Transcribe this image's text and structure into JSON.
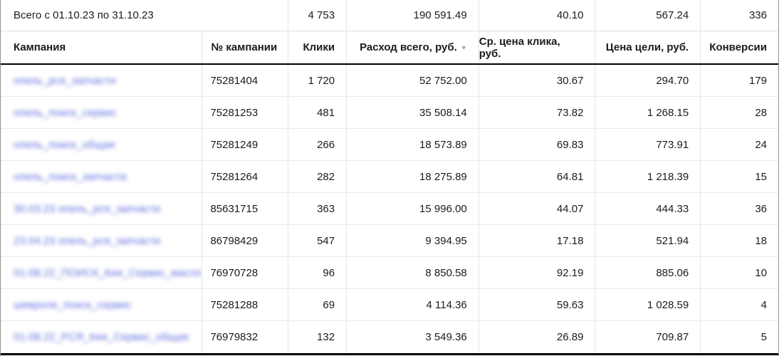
{
  "colors": {
    "link": "#4353d9",
    "header_underline": "#000000",
    "row_divider": "#e9e9e9",
    "sort_arrow": "#a0a0a0"
  },
  "table": {
    "totals": {
      "label": "Всего с 01.10.23 по 31.10.23",
      "clicks": "4 753",
      "cost": "190 591.49",
      "avg_cpc": "40.10",
      "goal_cost": "567.24",
      "conversions": "336"
    },
    "headers": {
      "campaign": "Кампания",
      "campaign_id": "№ кампании",
      "clicks": "Клики",
      "cost": "Расход всего, руб.",
      "avg_cpc": "Ср. цена клика, руб.",
      "goal_cost": "Цена цели, руб.",
      "conversions": "Конверсии"
    },
    "sort_icon": "▼",
    "sorted_by": "cost",
    "rows": [
      {
        "name": "опель_рся_запчасти",
        "id": "75281404",
        "clicks": "1 720",
        "cost": "52 752.00",
        "avg_cpc": "30.67",
        "goal_cost": "294.70",
        "conversions": "179"
      },
      {
        "name": "опель_поиск_сервис",
        "id": "75281253",
        "clicks": "481",
        "cost": "35 508.14",
        "avg_cpc": "73.82",
        "goal_cost": "1 268.15",
        "conversions": "28"
      },
      {
        "name": "опель_поиск_общая",
        "id": "75281249",
        "clicks": "266",
        "cost": "18 573.89",
        "avg_cpc": "69.83",
        "goal_cost": "773.91",
        "conversions": "24"
      },
      {
        "name": "опель_поиск_запчасти",
        "id": "75281264",
        "clicks": "282",
        "cost": "18 275.89",
        "avg_cpc": "64.81",
        "goal_cost": "1 218.39",
        "conversions": "15"
      },
      {
        "name": "30.03.23 опель_рся_запчасти",
        "id": "85631715",
        "clicks": "363",
        "cost": "15 996.00",
        "avg_cpc": "44.07",
        "goal_cost": "444.33",
        "conversions": "36"
      },
      {
        "name": "23.04.23 опель_рся_запчасти",
        "id": "86798429",
        "clicks": "547",
        "cost": "9 394.95",
        "avg_cpc": "17.18",
        "goal_cost": "521.94",
        "conversions": "18"
      },
      {
        "name": "01.08.22_ПОИСК_Кия_Сервис_масло",
        "id": "76970728",
        "clicks": "96",
        "cost": "8 850.58",
        "avg_cpc": "92.19",
        "goal_cost": "885.06",
        "conversions": "10"
      },
      {
        "name": "шевроле_поиск_сервис",
        "id": "75281288",
        "clicks": "69",
        "cost": "4 114.36",
        "avg_cpc": "59.63",
        "goal_cost": "1 028.59",
        "conversions": "4"
      },
      {
        "name": "01.08.22_РСЯ_Кия_Сервис_общая",
        "id": "76979832",
        "clicks": "132",
        "cost": "3 549.36",
        "avg_cpc": "26.89",
        "goal_cost": "709.87",
        "conversions": "5"
      }
    ]
  }
}
